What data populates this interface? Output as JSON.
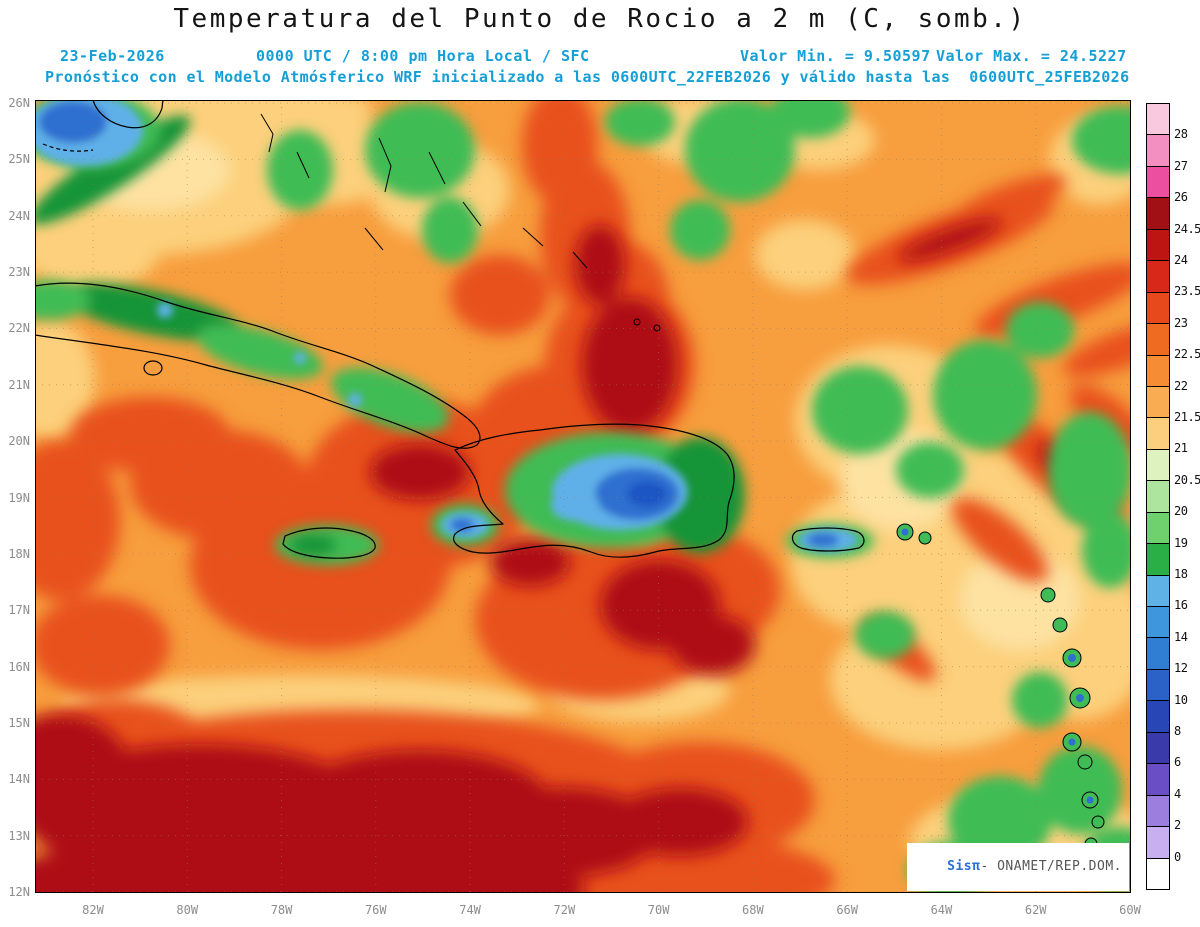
{
  "title": "Temperatura del Punto de Rocio a 2 m (C, somb.)",
  "header": {
    "date": "23-Feb-2026",
    "time_info": "0000 UTC / 8:00 pm Hora Local / SFC",
    "min_value": "Valor Min. = 9.50597",
    "max_value": "Valor Max. = 24.5227",
    "forecast_info": "Pronóstico con el Modelo Atmósferico WRF inicializado a las 0600UTC_22FEB2026 y válido hasta las  0600UTC_25FEB2026"
  },
  "map": {
    "lat_ticks": [
      "26N",
      "25N",
      "24N",
      "23N",
      "22N",
      "21N",
      "20N",
      "19N",
      "18N",
      "17N",
      "16N",
      "15N",
      "14N",
      "13N",
      "12N"
    ],
    "lon_ticks": [
      "82W",
      "80W",
      "78W",
      "76W",
      "74W",
      "72W",
      "70W",
      "68W",
      "66W",
      "64W",
      "62W",
      "60W"
    ]
  },
  "colorbar": {
    "boundary_labels": [
      "28",
      "27",
      "26",
      "24.5",
      "24",
      "23.5",
      "23",
      "22.5",
      "22",
      "21.5",
      "21",
      "20.5",
      "20",
      "19",
      "18",
      "16",
      "14",
      "12",
      "10",
      "8",
      "6",
      "4",
      "2",
      "0"
    ],
    "segment_colors": [
      "#F9C9E0",
      "#F48FC2",
      "#EC4FA0",
      "#A11015",
      "#BC1512",
      "#D7281A",
      "#E8491C",
      "#EF6B22",
      "#F68D35",
      "#F9AC52",
      "#FCCF7F",
      "#DDF2BE",
      "#AEE59E",
      "#6FD06E",
      "#2AAE46",
      "#5FB2E6",
      "#3E96DC",
      "#2F7ED4",
      "#2A62C8",
      "#2946B6",
      "#3B3AAB",
      "#6A4EC6",
      "#9C7EDF",
      "#C7AFF0",
      "#FFFFFF"
    ]
  },
  "watermark": {
    "brand": "Sisπ",
    "suffix": "- ONAMET/REP.DOM."
  },
  "colors": {
    "header_text": "#149fd6",
    "title_text": "#151515",
    "axis_text": "#8d8d8d",
    "watermark_brand": "#2b6fd6"
  }
}
